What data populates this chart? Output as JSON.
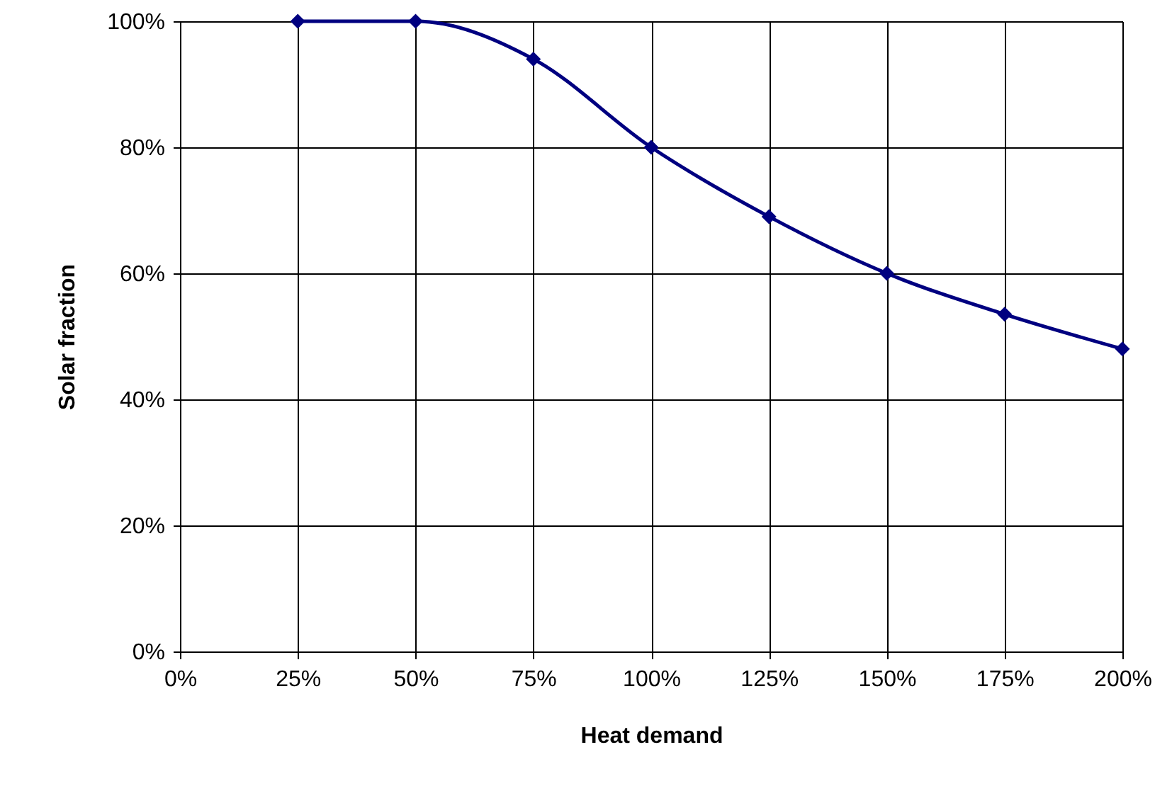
{
  "chart_data": {
    "type": "line",
    "xlabel": "Heat demand",
    "ylabel": "Solar fraction",
    "x": [
      25,
      50,
      75,
      100,
      125,
      150,
      175,
      200
    ],
    "series": [
      {
        "color": "#000080",
        "values": [
          100,
          100,
          94,
          80,
          69,
          60,
          53.5,
          48
        ]
      }
    ],
    "xlim": [
      0,
      200
    ],
    "xticks": [
      {
        "value": 0,
        "label": "0%"
      },
      {
        "value": 25,
        "label": "25%"
      },
      {
        "value": 50,
        "label": "50%"
      },
      {
        "value": 75,
        "label": "75%"
      },
      {
        "value": 100,
        "label": "100%"
      },
      {
        "value": 125,
        "label": "125%"
      },
      {
        "value": 150,
        "label": "150%"
      },
      {
        "value": 175,
        "label": "175%"
      },
      {
        "value": 200,
        "label": "200%"
      }
    ],
    "ylim": [
      0,
      100
    ],
    "yticks": [
      {
        "value": 0,
        "label": "0%"
      },
      {
        "value": 20,
        "label": "20%"
      },
      {
        "value": 40,
        "label": "40%"
      },
      {
        "value": 60,
        "label": "60%"
      },
      {
        "value": 80,
        "label": "80%"
      },
      {
        "value": 100,
        "label": "100%"
      }
    ],
    "grid": true,
    "marker": "diamond",
    "line_style": "solid"
  }
}
